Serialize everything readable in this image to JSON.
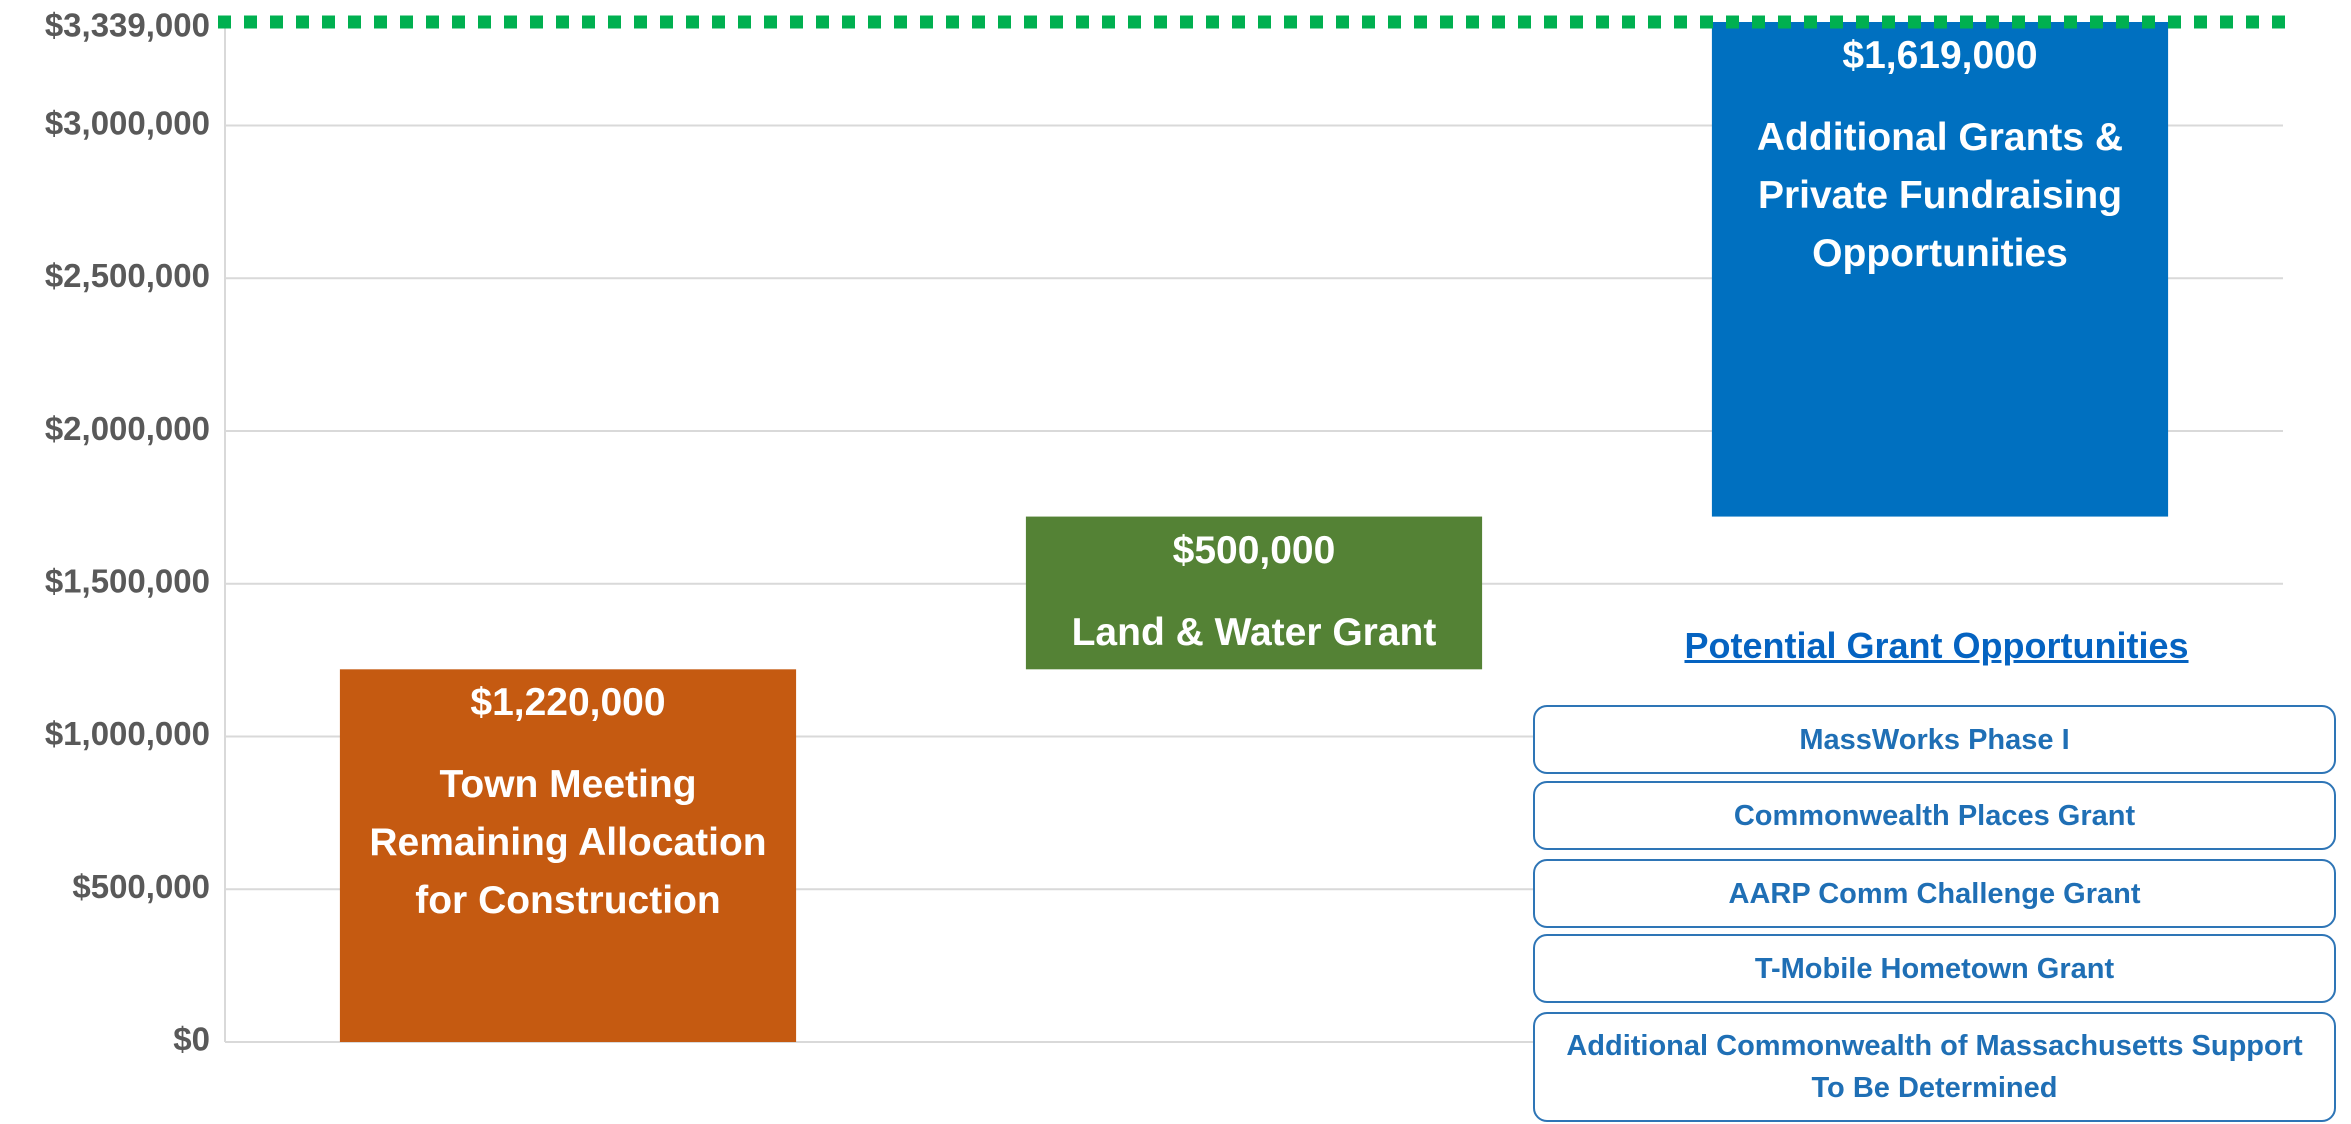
{
  "chart_data": {
    "type": "waterfall",
    "categories": [
      "Town Meeting Remaining Allocation for Construction",
      "Land & Water Grant",
      "Additional Grants & Private Fundraising Opportunities"
    ],
    "values": [
      1220000,
      500000,
      1619000
    ],
    "value_labels": [
      "$1,220,000",
      "$500,000",
      "$1,619,000"
    ],
    "colors": [
      "#c55a11",
      "#548235",
      "#0070c0"
    ],
    "ylim": [
      0,
      3339000
    ],
    "yticks": [
      {
        "value": 0,
        "label": "$0"
      },
      {
        "value": 500000,
        "label": "$500,000"
      },
      {
        "value": 1000000,
        "label": "$1,000,000"
      },
      {
        "value": 1500000,
        "label": "$1,500,000"
      },
      {
        "value": 2000000,
        "label": "$2,000,000"
      },
      {
        "value": 2500000,
        "label": "$2,500,000"
      },
      {
        "value": 3000000,
        "label": "$3,000,000"
      }
    ],
    "target": {
      "value": 3339000,
      "label": "$3,339,000",
      "color": "#00b050"
    },
    "grid": true
  },
  "grant_box": {
    "title": "Potential Grant Opportunities",
    "items": [
      "MassWorks Phase I",
      "Commonwealth Places Grant",
      "AARP Comm Challenge Grant",
      "T-Mobile Hometown Grant",
      "Additional Commonwealth of Massachusetts Support To Be Determined"
    ]
  }
}
